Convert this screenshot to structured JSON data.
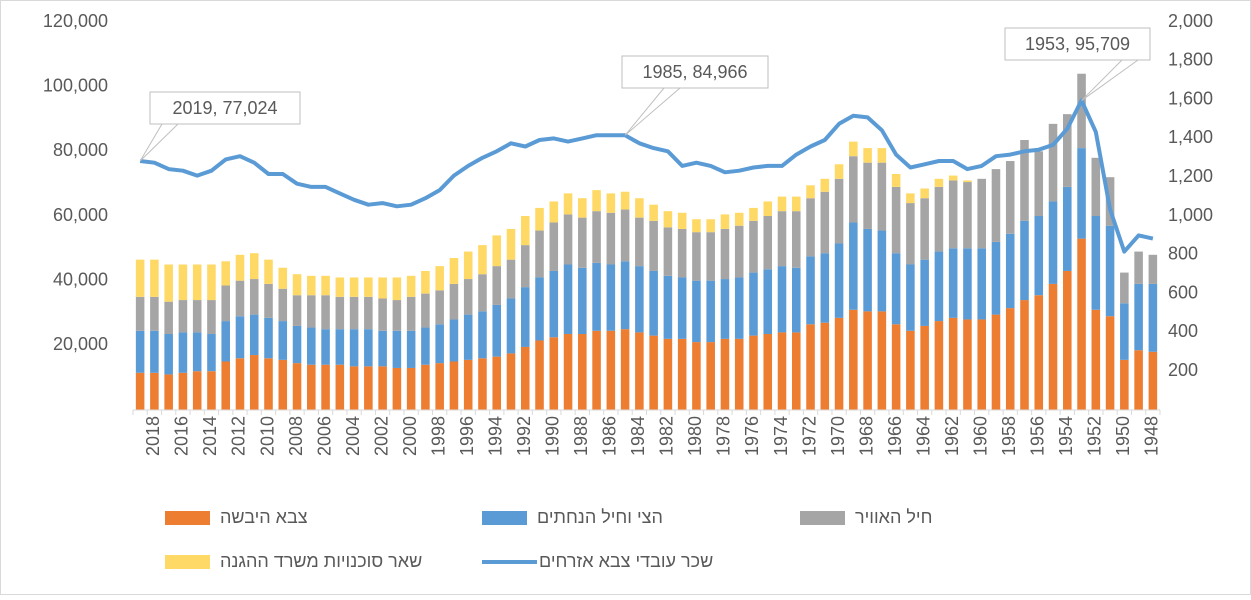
{
  "chart_data": {
    "type": "bar",
    "stacked": true,
    "categories": [
      null,
      "2018",
      null,
      "2016",
      null,
      "2014",
      null,
      "2012",
      null,
      "2010",
      null,
      "2008",
      null,
      "2006",
      null,
      "2004",
      null,
      "2002",
      null,
      "2000",
      null,
      "1998",
      null,
      "1996",
      null,
      "1994",
      null,
      "1992",
      null,
      "1990",
      null,
      "1988",
      null,
      "1986",
      null,
      "1984",
      null,
      "1982",
      null,
      "1980",
      null,
      "1978",
      null,
      "1976",
      null,
      "1974",
      null,
      "1972",
      null,
      "1970",
      null,
      "1968",
      null,
      "1966",
      null,
      "1964",
      null,
      "1962",
      null,
      "1960",
      null,
      "1958",
      null,
      "1956",
      null,
      "1954",
      null,
      "1952",
      null,
      "1950",
      null,
      "1948"
    ],
    "series": [
      {
        "name": "צבא היבשה",
        "color": "#ed7d31",
        "values": [
          11500,
          11500,
          11000,
          11500,
          12000,
          12000,
          15000,
          16000,
          17000,
          16000,
          15500,
          14500,
          14000,
          14000,
          14000,
          13500,
          13500,
          13500,
          13000,
          13000,
          14000,
          14500,
          15000,
          15500,
          16000,
          16500,
          17500,
          19500,
          21500,
          22500,
          23500,
          23500,
          24500,
          24500,
          25000,
          24000,
          23000,
          22000,
          22000,
          21000,
          21000,
          22000,
          22000,
          23000,
          23500,
          24000,
          24000,
          26500,
          27000,
          28500,
          31000,
          30500,
          30500,
          26500,
          24500,
          26000,
          27500,
          28500,
          28000,
          28000,
          29500,
          31500,
          34000,
          35500,
          39000,
          43000,
          53000,
          31000,
          29000,
          15500,
          18500,
          18000
        ]
      },
      {
        "name": "הצי וחיל הנחתים",
        "color": "#5b9bd5",
        "values": [
          13000,
          13000,
          12500,
          12500,
          12000,
          11500,
          12500,
          13000,
          12500,
          12500,
          12000,
          11500,
          11500,
          11000,
          11000,
          11500,
          11500,
          11000,
          11500,
          11500,
          11500,
          12000,
          13000,
          14000,
          14500,
          16000,
          17000,
          18500,
          19500,
          20500,
          21500,
          20500,
          21000,
          20500,
          21000,
          20500,
          20000,
          19500,
          19000,
          19000,
          19000,
          18500,
          19000,
          19500,
          20000,
          20500,
          20000,
          21000,
          21500,
          23000,
          27000,
          25500,
          25000,
          22000,
          20500,
          20500,
          21500,
          21500,
          22000,
          22000,
          22500,
          23000,
          24500,
          24500,
          25500,
          26000,
          28000,
          29000,
          28000,
          17500,
          20500,
          21000
        ]
      },
      {
        "name": "חיל האוויר",
        "color": "#a5a5a5",
        "values": [
          10500,
          10500,
          10000,
          10000,
          10000,
          10500,
          11000,
          11000,
          11000,
          10500,
          10000,
          9500,
          10000,
          10500,
          10000,
          10000,
          10000,
          10000,
          9500,
          10500,
          10500,
          10500,
          11000,
          11000,
          11500,
          12000,
          12000,
          13000,
          14500,
          15000,
          15500,
          15500,
          16000,
          16000,
          16000,
          15000,
          15500,
          15000,
          15000,
          15000,
          15000,
          15500,
          16000,
          16000,
          16500,
          17000,
          17500,
          18000,
          19000,
          20000,
          20500,
          20500,
          21000,
          20500,
          19000,
          19000,
          20000,
          21000,
          20500,
          21500,
          22500,
          22500,
          25000,
          20000,
          24000,
          22500,
          23000,
          18000,
          15000,
          9500,
          10000,
          9000
        ]
      },
      {
        "name": "שאר סוכנויות משרד ההגנה",
        "color": "#ffd966",
        "values": [
          11500,
          11500,
          11500,
          11000,
          11000,
          11000,
          7500,
          8000,
          8000,
          7500,
          6500,
          6500,
          6000,
          6000,
          6000,
          6000,
          6000,
          6500,
          7000,
          6500,
          7000,
          7500,
          8000,
          8500,
          9000,
          9500,
          9500,
          9000,
          7000,
          6500,
          6500,
          6000,
          6500,
          6000,
          5500,
          6000,
          5000,
          5000,
          5000,
          4000,
          4000,
          4500,
          4000,
          4000,
          4500,
          4500,
          4500,
          4000,
          4000,
          4500,
          4500,
          4500,
          4500,
          4000,
          3000,
          3000,
          2500,
          1500,
          500,
          0,
          0,
          0,
          0,
          0,
          0,
          0,
          0,
          0,
          0,
          0,
          0,
          0
        ]
      },
      {
        "name": "שכר עובדי צבא אזרחים",
        "type": "line",
        "color": "#5b9bd5",
        "values": [
          77024,
          76500,
          74500,
          74000,
          72500,
          74000,
          77500,
          78500,
          76500,
          73000,
          73000,
          70000,
          69000,
          69000,
          67000,
          65000,
          63500,
          64000,
          63000,
          63500,
          65500,
          68000,
          72500,
          75500,
          78000,
          80000,
          82500,
          81500,
          83500,
          84000,
          83000,
          84000,
          85000,
          85000,
          84966,
          82500,
          81000,
          80000,
          75500,
          76500,
          75500,
          73500,
          74000,
          75000,
          75500,
          75500,
          79000,
          81500,
          83500,
          88500,
          91000,
          90500,
          86500,
          79000,
          75000,
          76000,
          77000,
          77000,
          74500,
          75500,
          78500,
          79000,
          80000,
          80500,
          82000,
          87000,
          95709,
          86000,
          62000,
          49000,
          54000,
          53000
        ]
      }
    ],
    "annotations": [
      "2019, 77,024",
      "1985, 84,966",
      "1953, 95,709"
    ],
    "ylim": [
      0,
      120000
    ],
    "yticks": [
      {
        "value": 20000,
        "label": "20,000"
      },
      {
        "value": 40000,
        "label": "40,000"
      },
      {
        "value": 60000,
        "label": "60,000"
      },
      {
        "value": 80000,
        "label": "80,000"
      },
      {
        "value": 100000,
        "label": "100,000"
      },
      {
        "value": 120000,
        "label": "120,000"
      }
    ],
    "y2lim": [
      0,
      2000
    ],
    "y2ticks": [
      200,
      400,
      600,
      800,
      {
        "value": 1000,
        "label": "1,000"
      },
      {
        "value": 1200,
        "label": "1,200"
      },
      {
        "value": 1400,
        "label": "1,400"
      },
      {
        "value": 1600,
        "label": "1,600"
      },
      {
        "value": 1800,
        "label": "1,800"
      },
      {
        "value": 2000,
        "label": "2,000"
      }
    ],
    "grid": false
  }
}
